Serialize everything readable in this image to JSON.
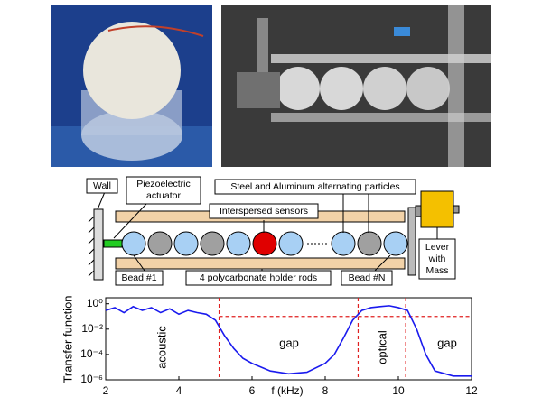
{
  "diagram": {
    "labels": {
      "wall": "Wall",
      "actuator": [
        "Piezoelectric",
        "actuator"
      ],
      "particles": "Steel and Aluminum alternating particles",
      "sensors": "Interspersed sensors",
      "bead_first": "Bead #1",
      "rods": "4 polycarbonate holder rods",
      "bead_last": "Bead #N",
      "lever": [
        "Lever",
        "with",
        "Mass"
      ]
    }
  },
  "chart_data": {
    "type": "line",
    "xlabel": "f (kHz)",
    "ylabel": "Transfer function",
    "xlim": [
      2,
      12
    ],
    "xticks": [
      2,
      4,
      6,
      8,
      10,
      12
    ],
    "ylim": [
      1e-06,
      3
    ],
    "yscale": "log",
    "yticks": [
      {
        "value": 1,
        "label": "10⁰"
      },
      {
        "value": 0.01,
        "label": "10⁻²"
      },
      {
        "value": 0.0001,
        "label": "10⁻⁴"
      },
      {
        "value": 1e-06,
        "label": "10⁻⁶"
      }
    ],
    "annotations": [
      "acoustic",
      "gap",
      "optical",
      "gap"
    ],
    "band_edges": [
      5.1,
      8.9,
      10.2
    ],
    "threshold": 0.1,
    "reference_color": "#e02020",
    "series": [
      {
        "color": "#1a1aee",
        "x": [
          2.0,
          2.25,
          2.5,
          2.75,
          3.0,
          3.25,
          3.5,
          3.75,
          4.0,
          4.25,
          4.5,
          4.75,
          5.0,
          5.25,
          5.5,
          5.75,
          6.0,
          6.5,
          7.0,
          7.5,
          8.0,
          8.25,
          8.5,
          8.75,
          9.0,
          9.25,
          9.5,
          9.75,
          10.0,
          10.25,
          10.5,
          10.75,
          11.0,
          11.5,
          12.0
        ],
        "values": [
          0.3,
          0.5,
          0.2,
          0.6,
          0.3,
          0.5,
          0.2,
          0.4,
          0.15,
          0.3,
          0.2,
          0.15,
          0.05,
          0.003,
          0.0003,
          5e-05,
          2e-05,
          5e-06,
          3e-06,
          4e-06,
          2e-05,
          0.0001,
          0.002,
          0.05,
          0.3,
          0.5,
          0.6,
          0.7,
          0.5,
          0.3,
          0.01,
          0.0001,
          5e-06,
          2e-06,
          2e-06
        ]
      }
    ]
  }
}
